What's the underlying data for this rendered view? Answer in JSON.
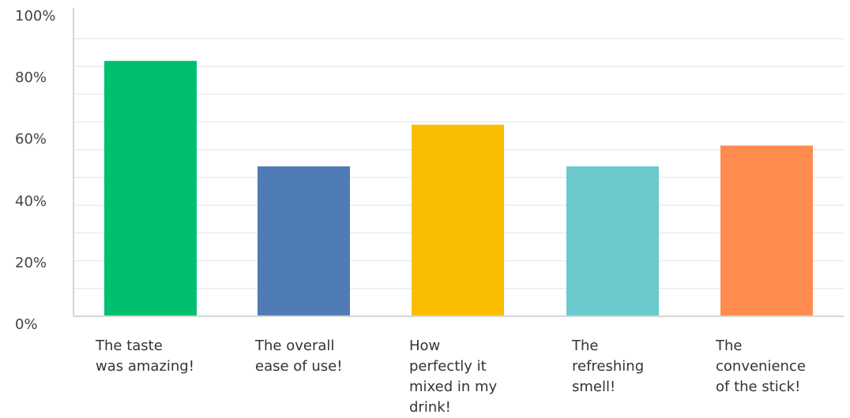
{
  "chart_data": {
    "type": "bar",
    "categories": [
      [
        "The taste",
        "was amazing!"
      ],
      [
        "The overall",
        "ease of use!"
      ],
      [
        "How",
        "perfectly it",
        "mixed in my",
        "drink!"
      ],
      [
        "The",
        "refreshing",
        "smell!"
      ],
      [
        "The",
        "convenience",
        "of the stick!"
      ]
    ],
    "values": [
      92,
      54,
      69,
      54,
      61.5
    ],
    "colors": [
      "#00bf6f",
      "#507cb6",
      "#f9be00",
      "#6bc8cd",
      "#ff8b4f"
    ],
    "ylim": [
      0,
      100
    ],
    "yticks": [
      0,
      20,
      40,
      60,
      80,
      100
    ],
    "ytick_labels": [
      "0%",
      "20%",
      "40%",
      "60%",
      "80%",
      "100%"
    ],
    "minor_gridlines": true,
    "legend": "none",
    "title": "",
    "xlabel": "",
    "ylabel": ""
  }
}
